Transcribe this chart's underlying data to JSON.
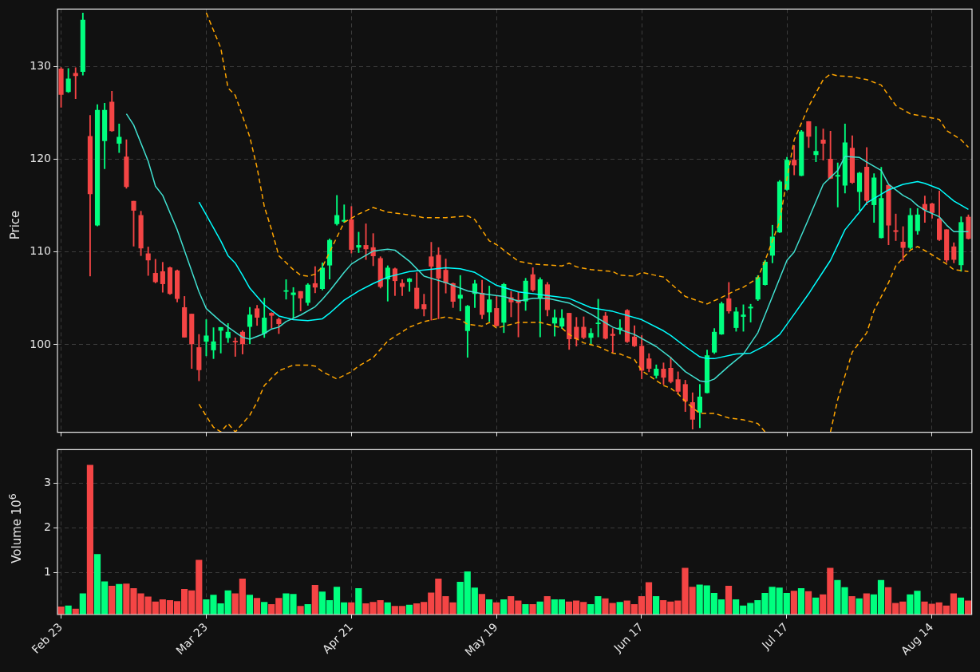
{
  "chart_data": [
    {
      "type": "candlestick",
      "ylabel": "Price",
      "tick_labels": "y",
      "grid": true,
      "categories": [
        null,
        null,
        null,
        null,
        null,
        null,
        null,
        null,
        null,
        null,
        null,
        null,
        null,
        null,
        null,
        null,
        null,
        null,
        null,
        null,
        null,
        null,
        null,
        null,
        null,
        null,
        null,
        null,
        null,
        null,
        null,
        null,
        null,
        null,
        null,
        null,
        null,
        null,
        null,
        null,
        null,
        null,
        null,
        null,
        null,
        null,
        null,
        null,
        null,
        null,
        null,
        null,
        null,
        null,
        null,
        null,
        null,
        null,
        null,
        null,
        null,
        null,
        null,
        null,
        null,
        null,
        null,
        null,
        null,
        null,
        null,
        null,
        null,
        null,
        null,
        null,
        null,
        null,
        null,
        null,
        null,
        null,
        null,
        null,
        null,
        null,
        null,
        null,
        null,
        null,
        null,
        null,
        null,
        null,
        null,
        null,
        null,
        null,
        null,
        null,
        null,
        null,
        null,
        null,
        null,
        null,
        null,
        null,
        null,
        null,
        null,
        null,
        null,
        null,
        null,
        null,
        null,
        null,
        null,
        null,
        null,
        null,
        null,
        null,
        null,
        null
      ],
      "ohlc": [
        [
          129.76,
          129.9,
          125.6,
          126.99
        ],
        [
          127.29,
          129.8,
          127.2,
          128.67
        ],
        [
          129.28,
          129.88,
          126.54,
          129.0
        ],
        [
          129.46,
          135.78,
          129.07,
          135.03
        ],
        [
          122.47,
          124.73,
          107.41,
          116.27
        ],
        [
          112.89,
          125.9,
          112.8,
          125.3
        ],
        [
          121.99,
          126.05,
          118.98,
          125.3
        ],
        [
          126.17,
          127.35,
          123.0,
          123.07
        ],
        [
          121.72,
          123.8,
          120.72,
          122.38
        ],
        [
          120.27,
          122.11,
          116.87,
          117.05
        ],
        [
          115.48,
          115.48,
          110.63,
          114.49
        ],
        [
          113.95,
          114.4,
          109.61,
          110.42
        ],
        [
          109.82,
          110.54,
          107.47,
          109.13
        ],
        [
          107.71,
          109.22,
          106.66,
          106.78
        ],
        [
          107.89,
          108.89,
          105.66,
          106.57
        ],
        [
          108.31,
          108.37,
          105.42,
          105.51
        ],
        [
          107.98,
          108.07,
          104.61,
          104.97
        ],
        [
          104.01,
          105.21,
          100.8,
          100.81
        ],
        [
          103.31,
          103.31,
          97.44,
          100.09
        ],
        [
          99.7,
          101.11,
          96.11,
          97.29
        ],
        [
          100.36,
          102.71,
          98.8,
          100.96
        ],
        [
          99.43,
          101.84,
          98.5,
          100.33
        ],
        [
          101.54,
          101.87,
          99.1,
          101.87
        ],
        [
          100.75,
          102.29,
          100.24,
          101.36
        ],
        [
          100.39,
          100.75,
          98.74,
          100.3
        ],
        [
          101.36,
          101.51,
          99.0,
          100.09
        ],
        [
          101.96,
          104.04,
          100.09,
          103.22
        ],
        [
          103.89,
          104.25,
          102.08,
          102.95
        ],
        [
          101.23,
          105.03,
          100.78,
          102.89
        ],
        [
          103.4,
          103.46,
          101.78,
          103.16
        ],
        [
          102.74,
          102.89,
          101.2,
          102.26
        ],
        [
          105.75,
          107.02,
          104.91,
          105.84
        ],
        [
          105.39,
          106.17,
          102.86,
          105.6
        ],
        [
          105.75,
          105.75,
          103.64,
          105.03
        ],
        [
          104.55,
          106.6,
          104.25,
          106.45
        ],
        [
          106.6,
          108.43,
          105.6,
          106.2
        ],
        [
          106.05,
          108.83,
          105.9,
          108.28
        ],
        [
          108.58,
          111.42,
          107.08,
          111.27
        ],
        [
          113.04,
          116.11,
          112.89,
          113.95
        ],
        [
          113.31,
          115.09,
          113.19,
          113.43
        ],
        [
          113.49,
          114.91,
          109.88,
          110.27
        ],
        [
          110.51,
          112.14,
          109.94,
          110.72
        ],
        [
          110.72,
          113.04,
          109.19,
          110.33
        ],
        [
          110.48,
          111.99,
          108.52,
          109.58
        ],
        [
          109.31,
          109.49,
          106.11,
          106.27
        ],
        [
          107.08,
          108.52,
          104.7,
          108.28
        ],
        [
          108.19,
          108.28,
          105.3,
          106.9
        ],
        [
          106.63,
          107.02,
          105.3,
          106.27
        ],
        [
          106.81,
          107.17,
          105.75,
          107.11
        ],
        [
          106.11,
          107.77,
          103.86,
          103.92
        ],
        [
          104.34,
          105.45,
          103.1,
          103.86
        ],
        [
          109.49,
          111.05,
          102.65,
          108.46
        ],
        [
          109.67,
          110.48,
          102.8,
          107.17
        ],
        [
          108.04,
          109.25,
          105.57,
          106.66
        ],
        [
          106.6,
          106.66,
          104.01,
          104.67
        ],
        [
          105.0,
          107.47,
          103.64,
          105.36
        ],
        [
          101.51,
          104.25,
          98.64,
          104.16
        ],
        [
          105.51,
          106.96,
          104.01,
          106.57
        ],
        [
          105.57,
          106.96,
          102.8,
          103.25
        ],
        [
          103.52,
          106.33,
          102.5,
          104.85
        ],
        [
          103.92,
          105.21,
          102.0,
          102.05
        ],
        [
          102.41,
          106.63,
          101.3,
          106.51
        ],
        [
          105.09,
          105.75,
          103.01,
          104.61
        ],
        [
          104.82,
          105.66,
          100.84,
          104.52
        ],
        [
          104.7,
          107.17,
          103.7,
          106.87
        ],
        [
          107.56,
          108.31,
          105.75,
          105.9
        ],
        [
          105.06,
          107.23,
          100.84,
          107.02
        ],
        [
          106.48,
          106.72,
          103.1,
          103.77
        ],
        [
          102.32,
          103.77,
          100.93,
          102.92
        ],
        [
          101.99,
          103.8,
          101.75,
          102.86
        ],
        [
          103.4,
          103.4,
          99.49,
          100.63
        ],
        [
          101.9,
          102.95,
          99.85,
          100.63
        ],
        [
          101.9,
          103.01,
          100.63,
          100.78
        ],
        [
          100.78,
          101.75,
          100.0,
          101.23
        ],
        [
          102.26,
          104.91,
          100.84,
          102.35
        ],
        [
          103.1,
          103.49,
          100.6,
          100.69
        ],
        [
          101.14,
          101.75,
          99.13,
          100.99
        ],
        [
          101.66,
          102.71,
          101.14,
          101.81
        ],
        [
          103.7,
          103.8,
          100.24,
          100.33
        ],
        [
          100.84,
          102.05,
          99.79,
          99.88
        ],
        [
          99.85,
          100.99,
          96.33,
          97.23
        ],
        [
          98.49,
          99.04,
          97.08,
          97.44
        ],
        [
          96.69,
          97.83,
          96.39,
          97.38
        ],
        [
          97.38,
          98.04,
          95.72,
          96.48
        ],
        [
          97.47,
          98.64,
          95.87,
          96.02
        ],
        [
          96.24,
          97.08,
          94.67,
          94.97
        ],
        [
          95.72,
          96.17,
          92.8,
          93.92
        ],
        [
          93.77,
          94.82,
          90.9,
          91.96
        ],
        [
          92.71,
          95.72,
          91.05,
          94.37
        ],
        [
          94.82,
          99.43,
          94.8,
          98.83
        ],
        [
          99.19,
          101.75,
          99.04,
          101.36
        ],
        [
          101.14,
          104.61,
          101.1,
          104.43
        ],
        [
          104.97,
          106.72,
          103.4,
          103.64
        ],
        [
          101.84,
          104.01,
          101.45,
          103.55
        ],
        [
          103.04,
          104.31,
          101.45,
          103.22
        ],
        [
          103.95,
          104.37,
          102.44,
          104.07
        ],
        [
          104.91,
          107.47,
          104.76,
          107.26
        ],
        [
          106.48,
          109.13,
          106.42,
          108.92
        ],
        [
          109.64,
          112.89,
          108.83,
          111.63
        ],
        [
          112.14,
          117.71,
          112.1,
          117.56
        ],
        [
          116.75,
          120.21,
          116.66,
          119.91
        ],
        [
          119.91,
          121.48,
          118.31,
          119.37
        ],
        [
          118.25,
          123.13,
          118.2,
          122.98
        ],
        [
          124.07,
          124.1,
          121.27,
          122.47
        ],
        [
          120.48,
          123.52,
          119.73,
          120.87
        ],
        [
          122.08,
          123.28,
          119.91,
          121.72
        ],
        [
          120.03,
          123.04,
          117.9,
          117.95
        ],
        [
          118.16,
          119.61,
          114.85,
          118.28
        ],
        [
          117.2,
          123.8,
          116.36,
          121.78
        ],
        [
          121.2,
          122.53,
          117.4,
          117.5
        ],
        [
          116.51,
          118.61,
          114.49,
          118.52
        ],
        [
          119.16,
          121.27,
          115.09,
          115.57
        ],
        [
          115.09,
          118.46,
          113.19,
          118.01
        ],
        [
          111.54,
          119.13,
          111.5,
          115.78
        ],
        [
          117.2,
          117.2,
          110.78,
          112.89
        ],
        [
          112.32,
          114.1,
          111.23,
          112.2
        ],
        [
          111.08,
          112.74,
          109.07,
          110.48
        ],
        [
          110.48,
          114.7,
          110.33,
          113.95
        ],
        [
          112.29,
          114.7,
          111.9,
          114.01
        ],
        [
          115.15,
          116.05,
          113.19,
          114.55
        ],
        [
          115.21,
          115.27,
          113.64,
          114.25
        ],
        [
          113.58,
          116.57,
          111.23,
          111.33
        ],
        [
          112.41,
          112.41,
          108.89,
          109.13
        ],
        [
          110.57,
          111.0,
          108.83,
          109.19
        ],
        [
          108.61,
          113.8,
          107.92,
          113.19
        ],
        [
          113.77,
          114.01,
          111.39,
          111.45
        ]
      ],
      "colors": [
        "#f44545",
        "#00ff7f",
        "#f44545",
        "#00ff7f",
        "#f44545",
        "#00ff7f",
        "#00ff7f",
        "#f44545",
        "#00ff7f",
        "#f44545",
        "#f44545",
        "#f44545",
        "#f44545",
        "#f44545",
        "#f44545",
        "#f44545",
        "#f44545",
        "#f44545",
        "#f44545",
        "#f44545",
        "#00ff7f",
        "#00ff7f",
        "#00ff7f",
        "#00ff7f",
        "#f44545",
        "#f44545",
        "#00ff7f",
        "#f44545",
        "#00ff7f",
        "#f44545",
        "#f44545",
        "#00ff7f",
        "#00ff7f",
        "#f44545",
        "#00ff7f",
        "#f44545",
        "#00ff7f",
        "#00ff7f",
        "#00ff7f",
        "#00ff7f",
        "#f44545",
        "#00ff7f",
        "#f44545",
        "#f44545",
        "#f44545",
        "#00ff7f",
        "#f44545",
        "#f44545",
        "#00ff7f",
        "#f44545",
        "#f44545",
        "#f44545",
        "#f44545",
        "#f44545",
        "#f44545",
        "#00ff7f",
        "#00ff7f",
        "#00ff7f",
        "#f44545",
        "#00ff7f",
        "#f44545",
        "#00ff7f",
        "#f44545",
        "#f44545",
        "#00ff7f",
        "#f44545",
        "#00ff7f",
        "#f44545",
        "#00ff7f",
        "#00ff7f",
        "#f44545",
        "#f44545",
        "#f44545",
        "#00ff7f",
        "#00ff7f",
        "#f44545",
        "#f44545",
        "#00ff7f",
        "#f44545",
        "#f44545",
        "#f44545",
        "#f44545",
        "#00ff7f",
        "#f44545",
        "#f44545",
        "#f44545",
        "#f44545",
        "#f44545",
        "#00ff7f",
        "#00ff7f",
        "#00ff7f",
        "#00ff7f",
        "#f44545",
        "#00ff7f",
        "#00ff7f",
        "#00ff7f",
        "#00ff7f",
        "#00ff7f",
        "#00ff7f",
        "#00ff7f",
        "#00ff7f",
        "#f44545",
        "#00ff7f",
        "#f44545",
        "#00ff7f",
        "#f44545",
        "#f44545",
        "#00ff7f",
        "#00ff7f",
        "#f44545",
        "#00ff7f",
        "#f44545",
        "#00ff7f",
        "#00ff7f",
        "#f44545",
        "#f44545",
        "#f44545",
        "#00ff7f",
        "#00ff7f",
        "#f44545",
        "#f44545",
        "#f44545",
        "#f44545",
        "#f44545",
        "#00ff7f",
        "#f44545"
      ],
      "series": [
        {
          "type": "line",
          "color": "#40e0d0",
          "line_style": "solid",
          "values": [
            null,
            null,
            null,
            null,
            null,
            null,
            null,
            null,
            null,
            124.9,
            123.7,
            null,
            119.8,
            117.1,
            116.1,
            null,
            112.4,
            null,
            null,
            105.7,
            103.9,
            null,
            102.5,
            101.9,
            null,
            100.8,
            100.6,
            null,
            101.2,
            101.7,
            101.9,
            102.5,
            null,
            103.2,
            null,
            104.1,
            104.9,
            105.8,
            null,
            107.8,
            108.7,
            109.2,
            null,
            110.1,
            null,
            110.3,
            110.2,
            null,
            109.0,
            null,
            107.4,
            null,
            null,
            106.7,
            null,
            null,
            105.8,
            null,
            105.5,
            null,
            null,
            105.2,
            null,
            104.7,
            null,
            105.0,
            null,
            105.0,
            null,
            null,
            104.5,
            null,
            null,
            103.3,
            null,
            null,
            101.9,
            null,
            null,
            101.1,
            null,
            null,
            99.8,
            null,
            98.6,
            null,
            97.1,
            null,
            96.1,
            96.0,
            96.3,
            null,
            97.7,
            null,
            99.0,
            null,
            101.3,
            null,
            105.2,
            null,
            109.1,
            110.0,
            null,
            113.6,
            null,
            117.3,
            null,
            118.8,
            120.3,
            null,
            120.2,
            119.7,
            null,
            118.8,
            117.3,
            null,
            116.1,
            115.7,
            115.0,
            114.5,
            null,
            113.8,
            112.9,
            112.2,
            null,
            112.2
          ]
        },
        {
          "type": "line",
          "color": "#00ffff",
          "line_style": "solid",
          "values": [
            null,
            null,
            null,
            null,
            null,
            null,
            null,
            null,
            null,
            null,
            null,
            null,
            null,
            null,
            null,
            null,
            null,
            null,
            null,
            115.4,
            null,
            null,
            111.2,
            109.6,
            108.8,
            107.5,
            106.1,
            null,
            104.3,
            null,
            103.1,
            null,
            102.7,
            null,
            102.6,
            null,
            102.8,
            103.4,
            null,
            104.8,
            null,
            105.8,
            null,
            106.6,
            null,
            107.3,
            null,
            null,
            107.9,
            null,
            null,
            null,
            null,
            108.3,
            null,
            108.2,
            null,
            107.8,
            null,
            null,
            106.4,
            null,
            null,
            105.7,
            null,
            105.5,
            null,
            null,
            105.2,
            null,
            105.0,
            null,
            null,
            104.0,
            null,
            null,
            103.6,
            null,
            null,
            null,
            102.7,
            null,
            null,
            101.5,
            101.0,
            null,
            99.8,
            null,
            98.7,
            98.5,
            98.5,
            null,
            null,
            99.0,
            null,
            99.1,
            null,
            99.9,
            null,
            101.1,
            null,
            103.3,
            null,
            105.5,
            null,
            null,
            109.1,
            null,
            112.4,
            null,
            114.3,
            115.3,
            null,
            null,
            116.7,
            null,
            117.3,
            null,
            117.6,
            117.4,
            null,
            116.8,
            null,
            115.5,
            null,
            114.6
          ]
        },
        {
          "type": "line",
          "color": "#ffa500",
          "line_style": "dashed",
          "values": [
            null,
            null,
            null,
            null,
            null,
            null,
            null,
            null,
            null,
            null,
            null,
            null,
            null,
            null,
            null,
            null,
            null,
            null,
            null,
            null,
            135.8,
            null,
            132.0,
            127.7,
            126.9,
            null,
            122.4,
            119.1,
            114.9,
            112.4,
            109.6,
            null,
            108.1,
            107.5,
            107.4,
            107.6,
            108.4,
            110.0,
            null,
            113.2,
            null,
            114.1,
            null,
            114.8,
            null,
            114.3,
            null,
            null,
            114.0,
            null,
            113.7,
            null,
            null,
            113.7,
            null,
            null,
            113.9,
            113.5,
            null,
            111.2,
            110.8,
            null,
            null,
            109.0,
            null,
            108.7,
            null,
            108.6,
            null,
            108.5,
            108.8,
            108.4,
            null,
            108.1,
            null,
            null,
            107.9,
            107.5,
            null,
            107.4,
            107.8,
            null,
            null,
            107.3,
            106.6,
            null,
            105.2,
            null,
            null,
            104.4,
            null,
            105.1,
            null,
            105.9,
            106.2,
            null,
            107.2,
            109.1,
            null,
            113.3,
            117.9,
            122.1,
            null,
            125.7,
            null,
            128.6,
            129.2,
            129.0,
            null,
            128.9,
            null,
            128.6,
            null,
            128.0,
            null,
            125.8,
            null,
            124.9,
            null,
            124.6,
            null,
            124.3,
            123.1,
            null,
            122.1,
            121.3
          ]
        },
        {
          "type": "line",
          "color": "#ffa500",
          "line_style": "dashed",
          "values": [
            null,
            null,
            null,
            null,
            null,
            null,
            null,
            null,
            null,
            null,
            null,
            null,
            null,
            null,
            null,
            null,
            null,
            null,
            null,
            93.6,
            92.3,
            91.1,
            90.6,
            91.5,
            90.6,
            null,
            92.4,
            93.8,
            95.6,
            null,
            97.2,
            null,
            97.8,
            null,
            97.8,
            97.7,
            97.1,
            null,
            96.3,
            null,
            97.1,
            97.7,
            null,
            98.6,
            null,
            100.4,
            null,
            null,
            101.9,
            null,
            102.5,
            null,
            null,
            103.0,
            null,
            102.7,
            102.2,
            null,
            102.0,
            102.4,
            101.8,
            null,
            null,
            102.4,
            null,
            102.4,
            102.4,
            null,
            null,
            101.8,
            101.1,
            null,
            100.2,
            null,
            99.8,
            null,
            99.1,
            99.0,
            null,
            98.4,
            97.2,
            null,
            null,
            95.6,
            95.3,
            94.7,
            93.9,
            93.2,
            92.6,
            null,
            92.6,
            null,
            92.1,
            null,
            91.9,
            null,
            91.5,
            90.6,
            null,
            null,
            null,
            null,
            null,
            null,
            null,
            null,
            null,
            null,
            null,
            null,
            null,
            null,
            null,
            null,
            null,
            null,
            null,
            null,
            null,
            null,
            null,
            null,
            null,
            null,
            null,
            null
          ]
        },
        {
          "type": "line",
          "color": "#ffa500",
          "line_style": "dashed",
          "values": [
            null,
            null,
            null,
            null,
            null,
            null,
            null,
            null,
            null,
            null,
            null,
            null,
            null,
            null,
            null,
            null,
            null,
            null,
            null,
            null,
            null,
            null,
            null,
            null,
            null,
            null,
            null,
            null,
            null,
            null,
            null,
            null,
            null,
            null,
            null,
            null,
            null,
            null,
            null,
            null,
            null,
            null,
            null,
            null,
            null,
            null,
            null,
            null,
            null,
            null,
            null,
            null,
            null,
            null,
            null,
            null,
            null,
            null,
            null,
            null,
            null,
            null,
            null,
            null,
            null,
            null,
            null,
            null,
            null,
            null,
            null,
            null,
            null,
            null,
            null,
            null,
            null,
            null,
            null,
            null,
            null,
            null,
            null,
            null,
            null,
            null,
            null,
            null,
            null,
            null,
            null,
            null,
            null,
            null,
            null,
            null,
            null,
            null,
            null,
            null,
            null,
            null,
            null,
            null,
            null,
            null,
            90.6,
            94.1,
            null,
            99.2,
            null,
            101.3,
            103.7,
            null,
            106.7,
            108.5,
            null,
            110.2,
            110.6,
            null,
            109.7,
            null,
            108.7,
            108.1,
            null,
            107.9
          ]
        }
      ],
      "ylim": [
        90.56,
        136.2
      ],
      "yticks": [
        100,
        110,
        120,
        130
      ]
    },
    {
      "type": "bar",
      "ylabel": "Volume  10$^{6}$",
      "grid": true,
      "categories": [
        "Feb 23",
        null,
        null,
        null,
        null,
        null,
        null,
        null,
        null,
        null,
        null,
        null,
        null,
        null,
        null,
        null,
        null,
        null,
        null,
        null,
        "Mar 23",
        null,
        null,
        null,
        null,
        null,
        null,
        null,
        null,
        null,
        null,
        null,
        null,
        null,
        null,
        null,
        null,
        null,
        null,
        null,
        "Apr 21",
        null,
        null,
        null,
        null,
        null,
        null,
        null,
        null,
        null,
        null,
        null,
        null,
        null,
        null,
        null,
        null,
        null,
        null,
        null,
        "May 19",
        null,
        null,
        null,
        null,
        null,
        null,
        null,
        null,
        null,
        null,
        null,
        null,
        null,
        null,
        null,
        null,
        null,
        null,
        null,
        "Jun 17",
        null,
        null,
        null,
        null,
        null,
        null,
        null,
        null,
        null,
        null,
        null,
        null,
        null,
        null,
        null,
        null,
        null,
        null,
        null,
        "Jul 17",
        null,
        null,
        null,
        null,
        null,
        null,
        null,
        null,
        null,
        null,
        null,
        null,
        null,
        null,
        null,
        null,
        null,
        null,
        null,
        "Aug 14",
        null,
        null,
        null,
        null,
        null
      ],
      "values": [
        0.25,
        0.27,
        0.2,
        0.54,
        3.41,
        1.42,
        0.81,
        0.71,
        0.75,
        0.76,
        0.66,
        0.54,
        0.47,
        0.36,
        0.41,
        0.39,
        0.37,
        0.64,
        0.61,
        1.29,
        0.41,
        0.51,
        0.32,
        0.61,
        0.54,
        0.87,
        0.51,
        0.44,
        0.35,
        0.3,
        0.44,
        0.54,
        0.53,
        0.26,
        0.3,
        0.73,
        0.58,
        0.39,
        0.69,
        0.34,
        0.34,
        0.66,
        0.32,
        0.35,
        0.39,
        0.34,
        0.26,
        0.26,
        0.29,
        0.32,
        0.35,
        0.56,
        0.87,
        0.48,
        0.34,
        0.8,
        1.03,
        0.67,
        0.53,
        0.41,
        0.34,
        0.41,
        0.48,
        0.38,
        0.3,
        0.3,
        0.36,
        0.48,
        0.41,
        0.41,
        0.36,
        0.38,
        0.35,
        0.3,
        0.48,
        0.43,
        0.33,
        0.35,
        0.38,
        0.3,
        0.48,
        0.79,
        0.48,
        0.39,
        0.36,
        0.38,
        1.11,
        0.69,
        0.74,
        0.72,
        0.55,
        0.41,
        0.71,
        0.41,
        0.27,
        0.33,
        0.39,
        0.55,
        0.69,
        0.67,
        0.55,
        0.6,
        0.66,
        0.59,
        0.45,
        0.52,
        1.11,
        0.84,
        0.68,
        0.48,
        0.43,
        0.54,
        0.52,
        0.84,
        0.68,
        0.33,
        0.36,
        0.52,
        0.6,
        0.36,
        0.31,
        0.34,
        0.27,
        0.54,
        0.45,
        0.38
      ],
      "colors": [
        "#f44545",
        "#00ff7f",
        "#f44545",
        "#00ff7f",
        "#f44545",
        "#00ff7f",
        "#00ff7f",
        "#f44545",
        "#00ff7f",
        "#f44545",
        "#f44545",
        "#f44545",
        "#f44545",
        "#f44545",
        "#f44545",
        "#f44545",
        "#f44545",
        "#f44545",
        "#f44545",
        "#f44545",
        "#00ff7f",
        "#00ff7f",
        "#00ff7f",
        "#00ff7f",
        "#f44545",
        "#f44545",
        "#00ff7f",
        "#f44545",
        "#00ff7f",
        "#f44545",
        "#f44545",
        "#00ff7f",
        "#00ff7f",
        "#f44545",
        "#00ff7f",
        "#f44545",
        "#00ff7f",
        "#00ff7f",
        "#00ff7f",
        "#00ff7f",
        "#f44545",
        "#00ff7f",
        "#f44545",
        "#f44545",
        "#f44545",
        "#00ff7f",
        "#f44545",
        "#f44545",
        "#00ff7f",
        "#f44545",
        "#f44545",
        "#f44545",
        "#f44545",
        "#f44545",
        "#f44545",
        "#00ff7f",
        "#00ff7f",
        "#00ff7f",
        "#f44545",
        "#00ff7f",
        "#f44545",
        "#00ff7f",
        "#f44545",
        "#f44545",
        "#00ff7f",
        "#f44545",
        "#00ff7f",
        "#f44545",
        "#00ff7f",
        "#00ff7f",
        "#f44545",
        "#f44545",
        "#f44545",
        "#00ff7f",
        "#00ff7f",
        "#f44545",
        "#f44545",
        "#00ff7f",
        "#f44545",
        "#f44545",
        "#f44545",
        "#f44545",
        "#00ff7f",
        "#f44545",
        "#f44545",
        "#f44545",
        "#f44545",
        "#f44545",
        "#00ff7f",
        "#00ff7f",
        "#00ff7f",
        "#00ff7f",
        "#f44545",
        "#00ff7f",
        "#00ff7f",
        "#00ff7f",
        "#00ff7f",
        "#00ff7f",
        "#00ff7f",
        "#00ff7f",
        "#00ff7f",
        "#f44545",
        "#00ff7f",
        "#f44545",
        "#00ff7f",
        "#f44545",
        "#f44545",
        "#00ff7f",
        "#00ff7f",
        "#f44545",
        "#00ff7f",
        "#f44545",
        "#00ff7f",
        "#00ff7f",
        "#f44545",
        "#f44545",
        "#f44545",
        "#00ff7f",
        "#00ff7f",
        "#f44545",
        "#f44545",
        "#f44545",
        "#f44545",
        "#f44545",
        "#00ff7f",
        "#f44545"
      ],
      "ylim": [
        0.07,
        3.75
      ],
      "yticks": [
        1,
        2,
        3
      ]
    }
  ]
}
